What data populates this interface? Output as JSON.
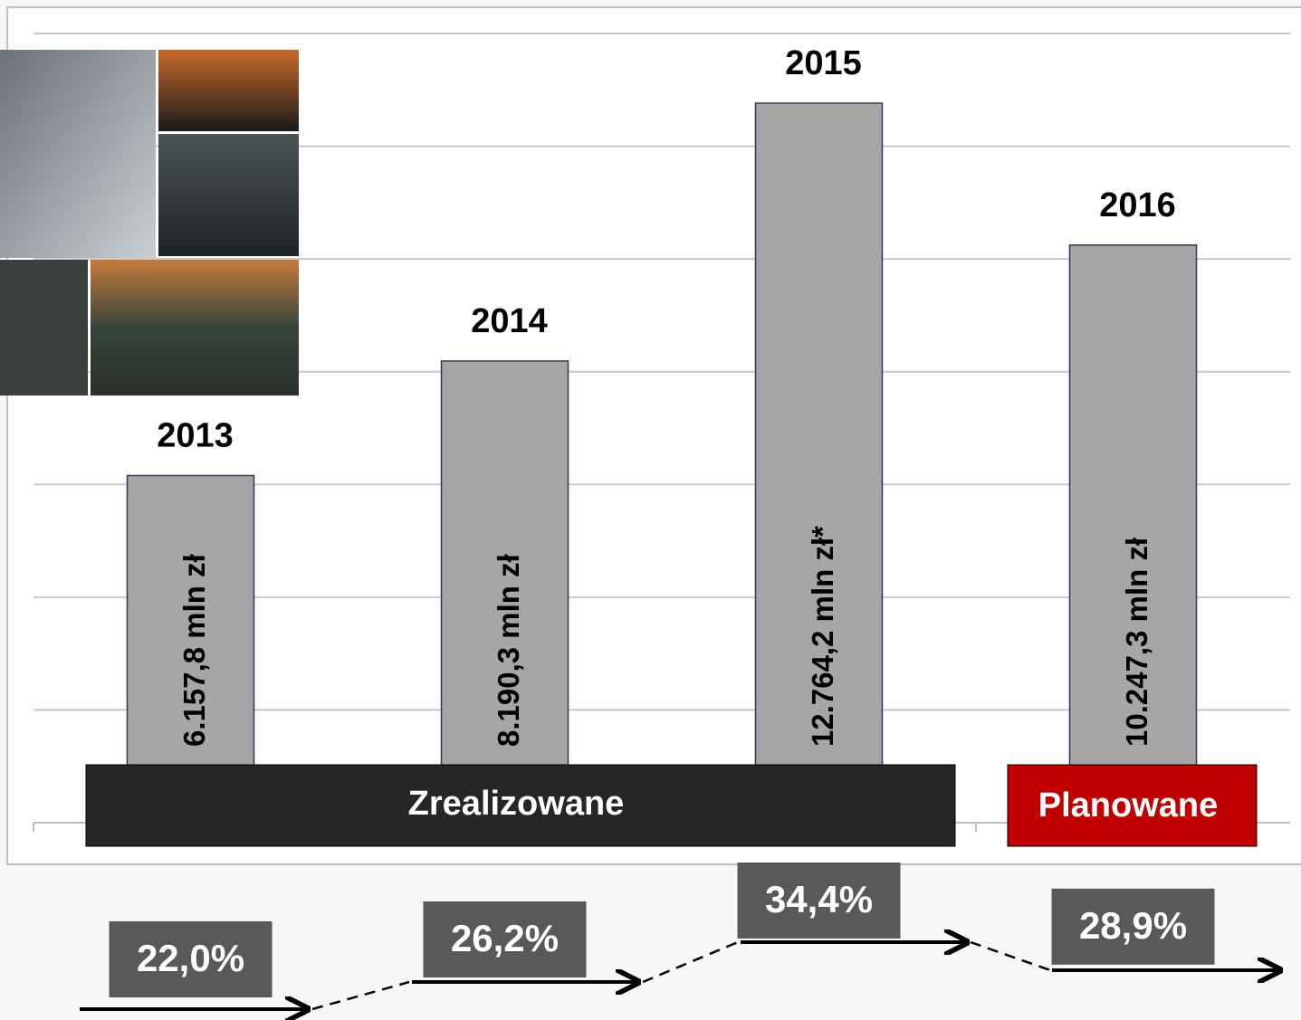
{
  "chart_data": {
    "type": "bar",
    "categories": [
      "2013",
      "2014",
      "2015",
      "2016"
    ],
    "values": [
      6157.8,
      8190.3,
      12764.2,
      10247.3
    ],
    "value_labels": [
      "6.157,8 mln zł",
      "8.190,3 mln zł",
      "12.764,2 mln zł*",
      "10.247,3 mln zł"
    ],
    "color": "#a6a6a6",
    "ylim": [
      0,
      14000
    ],
    "yticks": [
      0,
      2000,
      4000,
      6000,
      8000,
      10000,
      12000,
      14000
    ],
    "grid": true,
    "groups": [
      "Zrealizowane",
      "Planowane"
    ],
    "rates": [
      22.0,
      26.2,
      34.4,
      28.9
    ],
    "rate_labels": [
      "22,0%",
      "26,2%",
      "34,4%",
      "28,9%"
    ]
  }
}
